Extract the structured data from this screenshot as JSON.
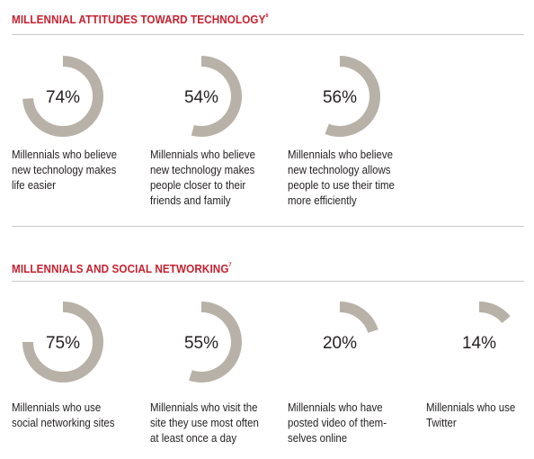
{
  "colors": {
    "title": "#c8202f",
    "ring": "#b8b1a7",
    "text": "#231f20",
    "rule": "#c9c9c9"
  },
  "chart_data": [
    {
      "type": "donut",
      "title": "MILLENNIAL ATTITUDES TOWARD TECHNOLOGY",
      "title_footnote": "6",
      "categories": [
        "Millennials who believe new technology makes life easier",
        "Millennials who believe new technology makes people closer to their friends and family",
        "Millennials who believe new technology allows people to use their time more efficiently"
      ],
      "values": [
        74,
        54,
        56
      ],
      "value_labels": [
        "74%",
        "54%",
        "56%"
      ],
      "captions": [
        "Millennials who believe\nnew technology makes\nlife easier",
        "Millennials who believe\nnew technology makes\npeople closer to their\nfriends and family",
        "Millennials who believe\nnew technology allows\npeople to use their time\nmore efficiently"
      ]
    },
    {
      "type": "donut",
      "title": "MILLENNIALS AND SOCIAL NETWORKING",
      "title_footnote": "7",
      "categories": [
        "Millennials who use social networking sites",
        "Millennials who visit the site they use most often at least once a day",
        "Millennials who have posted video of themselves online",
        "Millennials who use Twitter"
      ],
      "values": [
        75,
        55,
        20,
        14
      ],
      "value_labels": [
        "75%",
        "55%",
        "20%",
        "14%"
      ],
      "captions": [
        "Millennials who use\nsocial networking sites",
        "Millennials who visit the\nsite they use most often\nat least once a day",
        "Millennials who have\nposted video of them-\nselves online",
        "Millennials who use\nTwitter"
      ]
    }
  ]
}
